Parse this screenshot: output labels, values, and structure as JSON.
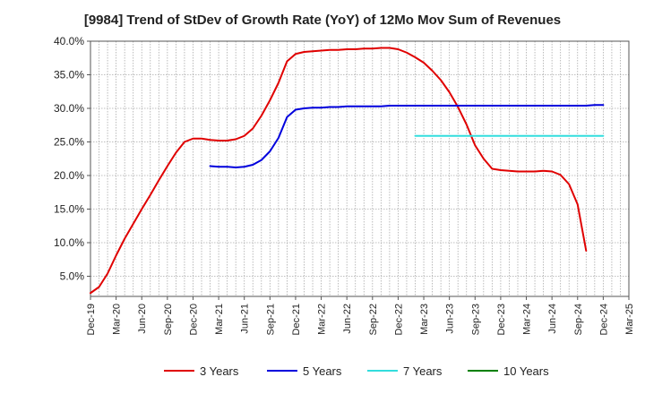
{
  "chart_data": {
    "type": "line",
    "title": "[9984]  Trend of StDev of Growth Rate (YoY) of 12Mo Mov Sum of Revenues",
    "xlabel": "",
    "ylabel": "",
    "ylim": [
      2.0,
      40.0
    ],
    "y_ticks": [
      "5.0%",
      "10.0%",
      "15.0%",
      "20.0%",
      "25.0%",
      "30.0%",
      "35.0%",
      "40.0%"
    ],
    "y_tick_values": [
      5,
      10,
      15,
      20,
      25,
      30,
      35,
      40
    ],
    "x_tick_labels": [
      "Dec-19",
      "Mar-20",
      "Jun-20",
      "Sep-20",
      "Dec-20",
      "Mar-21",
      "Jun-21",
      "Sep-21",
      "Dec-21",
      "Mar-22",
      "Jun-22",
      "Sep-22",
      "Dec-22",
      "Mar-23",
      "Jun-23",
      "Sep-23",
      "Dec-23",
      "Mar-24",
      "Jun-24",
      "Sep-24",
      "Dec-24",
      "Mar-25"
    ],
    "x_range_months": [
      0,
      63
    ],
    "grid": true,
    "series": [
      {
        "name": "3 Years",
        "color": "#e00000",
        "x_months": [
          0,
          1,
          2,
          3,
          4,
          5,
          6,
          7,
          8,
          9,
          10,
          11,
          12,
          13,
          14,
          15,
          16,
          17,
          18,
          19,
          20,
          21,
          22,
          23,
          24,
          25,
          26,
          27,
          28,
          29,
          30,
          31,
          32,
          33,
          34,
          35,
          36,
          37,
          38,
          39,
          40,
          41,
          42,
          43,
          44,
          45,
          46,
          47,
          48,
          49,
          50,
          51,
          52,
          53,
          54,
          55,
          56,
          57,
          58,
          59,
          60
        ],
        "values": [
          2.5,
          3.4,
          5.4,
          8.1,
          10.6,
          12.8,
          15.0,
          17.1,
          19.3,
          21.4,
          23.4,
          25.0,
          25.5,
          25.5,
          25.3,
          25.2,
          25.2,
          25.4,
          25.9,
          27.0,
          28.9,
          31.2,
          33.8,
          37.0,
          38.1,
          38.4,
          38.5,
          38.6,
          38.7,
          38.7,
          38.8,
          38.8,
          38.9,
          38.9,
          39.0,
          39.0,
          38.8,
          38.3,
          37.6,
          36.8,
          35.6,
          34.2,
          32.4,
          30.2,
          27.6,
          24.5,
          22.5,
          21.0,
          20.8,
          20.7,
          20.6,
          20.6,
          20.6,
          20.7,
          20.6,
          20.1,
          18.7,
          15.7,
          8.8,
          null,
          null
        ]
      },
      {
        "name": "5 Years",
        "color": "#0000dd",
        "x_months": [
          14,
          15,
          16,
          17,
          18,
          19,
          20,
          21,
          22,
          23,
          24,
          25,
          26,
          27,
          28,
          29,
          30,
          31,
          32,
          33,
          34,
          35,
          36,
          37,
          38,
          39,
          40,
          41,
          42,
          43,
          44,
          45,
          46,
          47,
          48,
          49,
          50,
          51,
          52,
          53,
          54,
          55,
          56,
          57,
          58,
          59,
          60
        ],
        "values": [
          21.4,
          21.3,
          21.3,
          21.2,
          21.3,
          21.6,
          22.3,
          23.6,
          25.6,
          28.7,
          29.8,
          30.0,
          30.1,
          30.1,
          30.2,
          30.2,
          30.3,
          30.3,
          30.3,
          30.3,
          30.3,
          30.4,
          30.4,
          30.4,
          30.4,
          30.4,
          30.4,
          30.4,
          30.4,
          30.4,
          30.4,
          30.4,
          30.4,
          30.4,
          30.4,
          30.4,
          30.4,
          30.4,
          30.4,
          30.4,
          30.4,
          30.4,
          30.4,
          30.4,
          30.4,
          30.5,
          30.5
        ]
      },
      {
        "name": "7 Years",
        "color": "#33dddd",
        "x_months": [
          38,
          39,
          40,
          41,
          42,
          43,
          44,
          45,
          46,
          47,
          48,
          49,
          50,
          51,
          52,
          53,
          54,
          55,
          56,
          57,
          58,
          59,
          60
        ],
        "values": [
          25.9,
          25.9,
          25.9,
          25.9,
          25.9,
          25.9,
          25.9,
          25.9,
          25.9,
          25.9,
          25.9,
          25.9,
          25.9,
          25.9,
          25.9,
          25.9,
          25.9,
          25.9,
          25.9,
          25.9,
          25.9,
          25.9,
          25.9
        ]
      },
      {
        "name": "10 Years",
        "color": "#008000",
        "x_months": [],
        "values": []
      }
    ]
  }
}
